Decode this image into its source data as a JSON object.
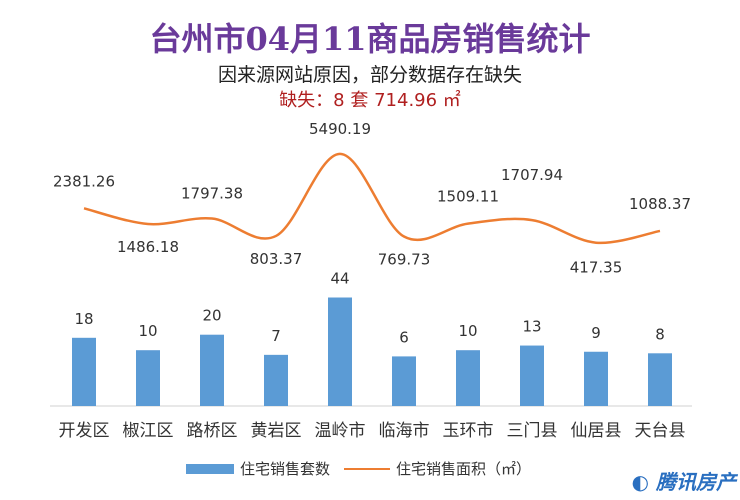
{
  "title": "台州市04月11商品房销售统计",
  "subtitle": "因来源网站原因，部分数据存在缺失",
  "missing": "缺失：8 套 714.96 ㎡",
  "logo": "腾讯房产",
  "chart_data": {
    "type": "bar+line",
    "categories": [
      "开发区",
      "椒江区",
      "路桥区",
      "黄岩区",
      "温岭市",
      "临海市",
      "玉环市",
      "三门县",
      "仙居县",
      "天台县"
    ],
    "series": [
      {
        "name": "住宅销售套数",
        "type": "bar",
        "color": "#5b9bd5",
        "values": [
          18,
          10,
          20,
          7,
          44,
          6,
          10,
          13,
          9,
          8
        ]
      },
      {
        "name": "住宅销售面积（㎡）",
        "type": "line",
        "color": "#ed7d31",
        "values": [
          2381.26,
          1486.18,
          1797.38,
          803.37,
          5490.19,
          769.73,
          1509.11,
          1707.94,
          417.35,
          1088.37
        ]
      }
    ],
    "legend": "bottom",
    "grid": false
  }
}
